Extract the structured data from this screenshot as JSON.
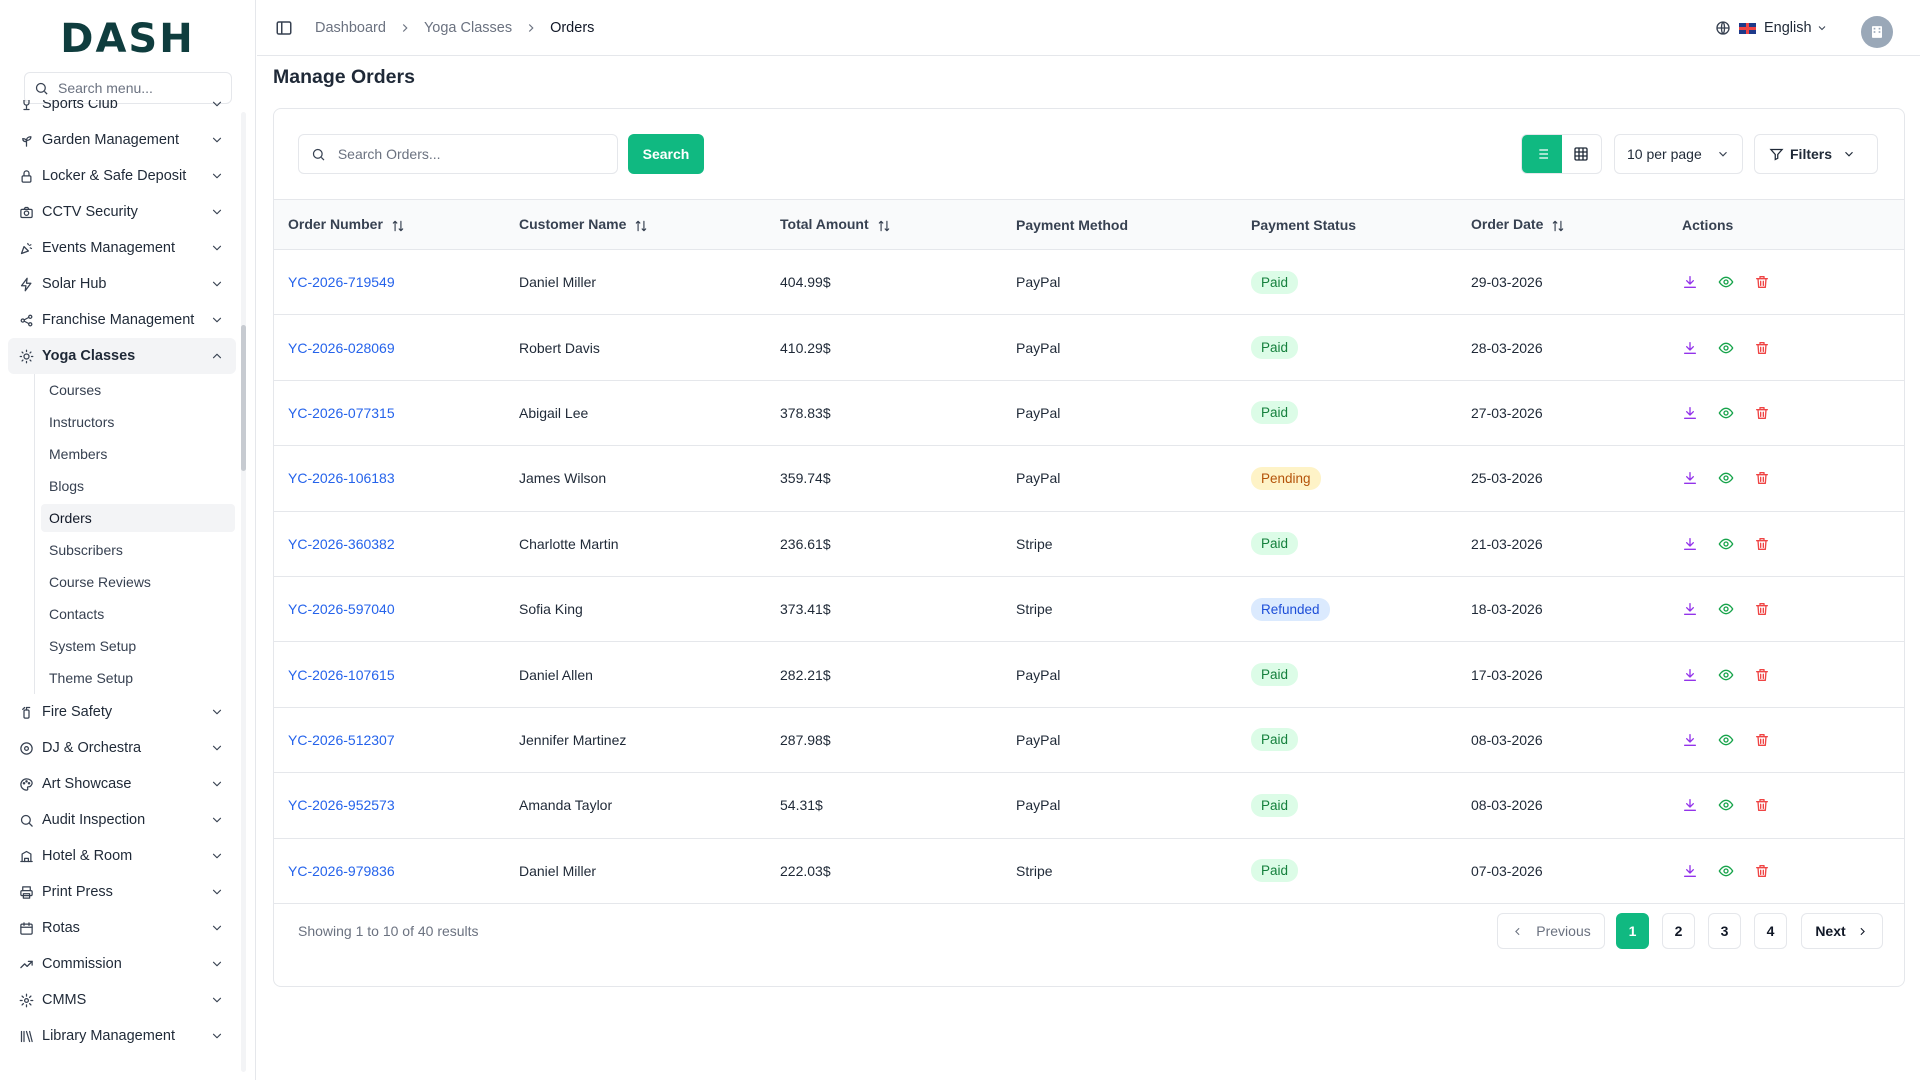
{
  "app": {
    "logo": "DASH"
  },
  "sidebar": {
    "search_placeholder": "Search menu...",
    "items_top": [
      {
        "label": "Sports Club",
        "icon": "trophy-icon"
      },
      {
        "label": "Garden Management",
        "icon": "plant-icon"
      },
      {
        "label": "Locker & Safe Deposit",
        "icon": "lock-icon"
      },
      {
        "label": "CCTV Security",
        "icon": "camera-icon"
      },
      {
        "label": "Events Management",
        "icon": "party-icon"
      },
      {
        "label": "Solar Hub",
        "icon": "bolt-icon"
      },
      {
        "label": "Franchise Management",
        "icon": "share-icon"
      }
    ],
    "active_group": {
      "label": "Yoga Classes",
      "icon": "sun-icon"
    },
    "sub_items": [
      "Courses",
      "Instructors",
      "Members",
      "Blogs",
      "Orders",
      "Subscribers",
      "Course Reviews",
      "Contacts",
      "System Setup",
      "Theme Setup"
    ],
    "active_sub": "Orders",
    "items_bottom": [
      {
        "label": "Fire Safety",
        "icon": "extinguisher-icon"
      },
      {
        "label": "DJ & Orchestra",
        "icon": "music-icon"
      },
      {
        "label": "Art Showcase",
        "icon": "palette-icon"
      },
      {
        "label": "Audit Inspection",
        "icon": "magnifier-icon"
      },
      {
        "label": "Hotel & Room",
        "icon": "hotel-icon"
      },
      {
        "label": "Print Press",
        "icon": "printer-icon"
      },
      {
        "label": "Rotas",
        "icon": "calendar-icon"
      },
      {
        "label": "Commission",
        "icon": "trending-icon"
      },
      {
        "label": "CMMS",
        "icon": "cog-icon"
      },
      {
        "label": "Library Management",
        "icon": "library-icon"
      }
    ]
  },
  "header": {
    "breadcrumbs": [
      "Dashboard",
      "Yoga Classes",
      "Orders"
    ],
    "language": "English"
  },
  "page": {
    "title": "Manage Orders",
    "search_placeholder": "Search Orders...",
    "search_button": "Search",
    "per_page": "10 per page",
    "filters_label": "Filters"
  },
  "table": {
    "columns": [
      "Order Number",
      "Customer Name",
      "Total Amount",
      "Payment Method",
      "Payment Status",
      "Order Date",
      "Actions"
    ],
    "rows": [
      {
        "order": "YC-2026-719549",
        "customer": "Daniel Miller",
        "amount": "404.99$",
        "method": "PayPal",
        "status": "Paid",
        "date": "29-03-2026"
      },
      {
        "order": "YC-2026-028069",
        "customer": "Robert Davis",
        "amount": "410.29$",
        "method": "PayPal",
        "status": "Paid",
        "date": "28-03-2026"
      },
      {
        "order": "YC-2026-077315",
        "customer": "Abigail Lee",
        "amount": "378.83$",
        "method": "PayPal",
        "status": "Paid",
        "date": "27-03-2026"
      },
      {
        "order": "YC-2026-106183",
        "customer": "James Wilson",
        "amount": "359.74$",
        "method": "PayPal",
        "status": "Pending",
        "date": "25-03-2026"
      },
      {
        "order": "YC-2026-360382",
        "customer": "Charlotte Martin",
        "amount": "236.61$",
        "method": "Stripe",
        "status": "Paid",
        "date": "21-03-2026"
      },
      {
        "order": "YC-2026-597040",
        "customer": "Sofia King",
        "amount": "373.41$",
        "method": "Stripe",
        "status": "Refunded",
        "date": "18-03-2026"
      },
      {
        "order": "YC-2026-107615",
        "customer": "Daniel Allen",
        "amount": "282.21$",
        "method": "PayPal",
        "status": "Paid",
        "date": "17-03-2026"
      },
      {
        "order": "YC-2026-512307",
        "customer": "Jennifer Martinez",
        "amount": "287.98$",
        "method": "PayPal",
        "status": "Paid",
        "date": "08-03-2026"
      },
      {
        "order": "YC-2026-952573",
        "customer": "Amanda Taylor",
        "amount": "54.31$",
        "method": "PayPal",
        "status": "Paid",
        "date": "08-03-2026"
      },
      {
        "order": "YC-2026-979836",
        "customer": "Daniel Miller",
        "amount": "222.03$",
        "method": "Stripe",
        "status": "Paid",
        "date": "07-03-2026"
      }
    ]
  },
  "pagination": {
    "summary": "Showing 1 to 10 of 40 results",
    "previous": "Previous",
    "next": "Next",
    "pages": [
      "1",
      "2",
      "3",
      "4"
    ],
    "current": "1"
  },
  "colors": {
    "accent": "#10b981",
    "link": "#2563eb"
  }
}
